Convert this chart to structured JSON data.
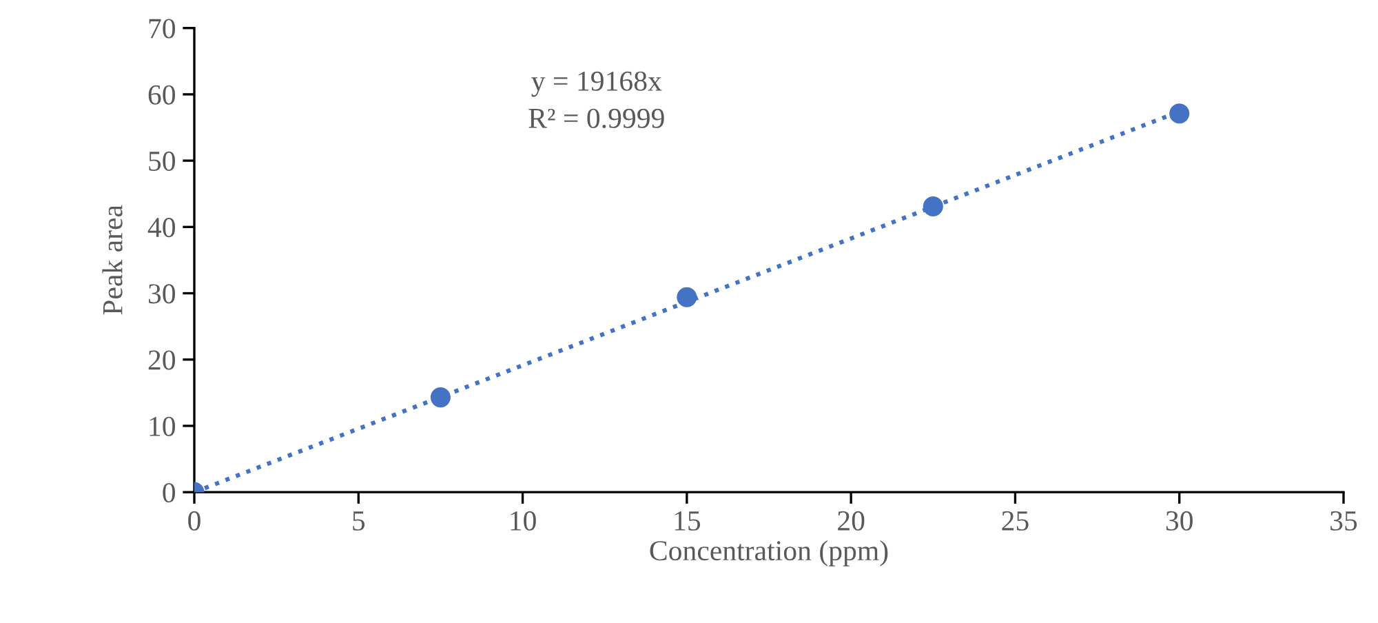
{
  "chart_data": {
    "type": "scatter",
    "xlabel": "Concentration (ppm)",
    "ylabel": "Peak area",
    "xlim": [
      0,
      35
    ],
    "xticks": [
      0,
      5,
      10,
      15,
      20,
      25,
      30,
      35
    ],
    "ylim": [
      0,
      70
    ],
    "yticks": [
      0,
      10,
      20,
      30,
      40,
      50,
      60,
      70
    ],
    "grid": false,
    "series": [
      {
        "color": "#4472c4",
        "marker": "circle",
        "x": [
          0,
          7.5,
          15,
          22.5,
          30
        ],
        "values": [
          0,
          14.3,
          29.4,
          43.1,
          57.1
        ]
      },
      {
        "type": "line",
        "color": "#4472c4",
        "line_style": "dotted",
        "x": [
          0,
          30
        ],
        "values": [
          0,
          57.4
        ]
      }
    ],
    "annotations": [
      "y = 19168x",
      "R² = 0.9999"
    ]
  }
}
